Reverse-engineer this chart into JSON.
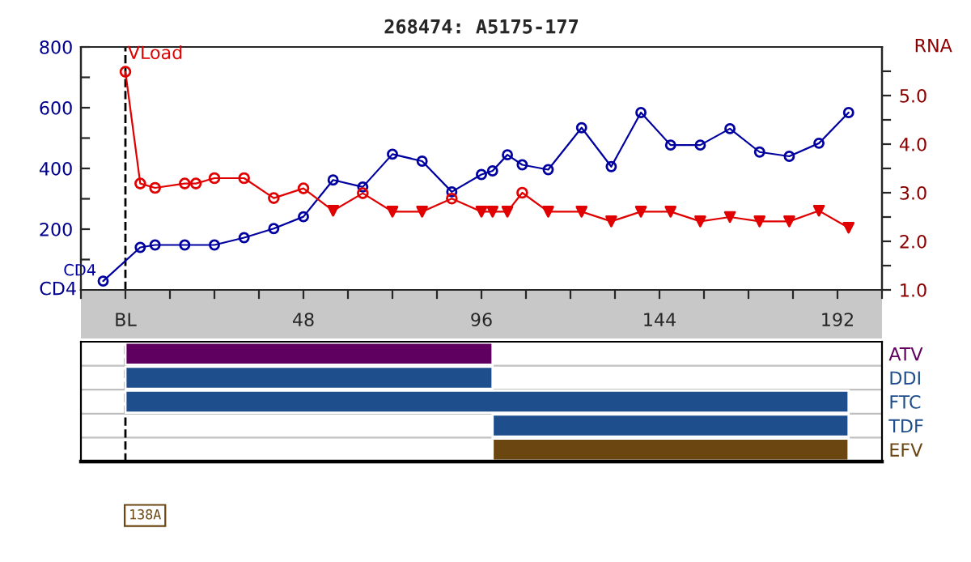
{
  "chart_data": [
    {
      "type": "line",
      "title": "268474: A5175-177",
      "ylabel": "CD4",
      "y2label": "RNA",
      "xlim": [
        -12,
        204
      ],
      "xticks": [
        {
          "value": -12,
          "label": null
        },
        {
          "value": 0,
          "label": "BL"
        },
        {
          "value": 12,
          "label": null
        },
        {
          "value": 24,
          "label": null
        },
        {
          "value": 36,
          "label": null
        },
        48,
        {
          "value": 60,
          "label": null
        },
        {
          "value": 72,
          "label": null
        },
        {
          "value": 84,
          "label": null
        },
        96,
        {
          "value": 108,
          "label": null
        },
        {
          "value": 120,
          "label": null
        },
        {
          "value": 132,
          "label": null
        },
        144,
        {
          "value": 156,
          "label": null
        },
        {
          "value": 168,
          "label": null
        },
        {
          "value": 180,
          "label": null
        },
        192,
        {
          "value": 204,
          "label": null
        }
      ],
      "ylim": [
        0,
        800
      ],
      "yticks": [
        {
          "value": 100,
          "label": null
        },
        200,
        {
          "value": 300,
          "label": null
        },
        400,
        {
          "value": 500,
          "label": null
        },
        600,
        {
          "value": 700,
          "label": null
        },
        800
      ],
      "y2lim": [
        1.0,
        6.0
      ],
      "y2ticks": [
        {
          "value": 1,
          "label": "1.0"
        },
        {
          "value": 1.5,
          "label": null
        },
        {
          "value": 2,
          "label": "2.0"
        },
        {
          "value": 2.5,
          "label": null
        },
        {
          "value": 3,
          "label": "3.0"
        },
        {
          "value": 3.5,
          "label": null
        },
        {
          "value": 4,
          "label": "4.0"
        },
        {
          "value": 4.5,
          "label": null
        },
        {
          "value": 5,
          "label": "5.0"
        },
        {
          "value": 5.5,
          "label": null
        }
      ],
      "grid": false,
      "ref_lines": [
        {
          "axis": "x",
          "value": 0,
          "color": "#000000",
          "line_style": "dashed"
        }
      ],
      "series": [
        {
          "name": "CD4",
          "type": "line",
          "color": "#0000a0",
          "marker": "circle",
          "x": [
            -6,
            4,
            8,
            16,
            24,
            32,
            40,
            48,
            56,
            64,
            72,
            80,
            88,
            96,
            99,
            103,
            107,
            114,
            123,
            131,
            139,
            147,
            155,
            163,
            171,
            179,
            187,
            195
          ],
          "values": [
            29,
            140,
            148,
            148,
            148,
            172,
            202,
            241,
            362,
            339,
            447,
            424,
            323,
            380,
            392,
            445,
            412,
            396,
            534,
            406,
            584,
            477,
            477,
            531,
            454,
            440,
            483,
            584
          ]
        },
        {
          "name": "VLoad",
          "type": "line",
          "axis": "y2",
          "color": "#e00000",
          "marker": "none",
          "x": [
            0,
            4,
            8,
            16,
            19,
            24,
            32,
            40,
            48,
            56,
            64,
            72,
            80,
            88,
            96,
            99,
            103,
            107,
            114,
            123,
            131,
            139,
            147,
            155,
            163,
            171,
            179,
            187,
            195
          ],
          "values": [
            5.49,
            3.19,
            3.1,
            3.19,
            3.19,
            3.3,
            3.3,
            2.89,
            3.09,
            2.63,
            2.99,
            2.61,
            2.61,
            2.88,
            2.61,
            2.61,
            2.61,
            3.0,
            2.61,
            2.61,
            2.41,
            2.61,
            2.61,
            2.41,
            2.5,
            2.41,
            2.41,
            2.63,
            2.28
          ]
        },
        {
          "type": "scatter",
          "axis": "y2",
          "color": "#e00000",
          "marker": "circle",
          "x": [
            0,
            4,
            8,
            16,
            19,
            24,
            32,
            40,
            48,
            64,
            88,
            107
          ],
          "values": [
            5.49,
            3.19,
            3.1,
            3.19,
            3.19,
            3.3,
            3.3,
            2.89,
            3.09,
            2.99,
            2.88,
            3.0
          ]
        },
        {
          "type": "scatter",
          "axis": "y2",
          "color": "#e00000",
          "marker": "triangle",
          "x": [
            56,
            72,
            80,
            96,
            99,
            103,
            114,
            123,
            131,
            139,
            147,
            155,
            163,
            171,
            179,
            187,
            195
          ],
          "values": [
            2.63,
            2.61,
            2.61,
            2.61,
            2.61,
            2.61,
            2.61,
            2.61,
            2.41,
            2.61,
            2.61,
            2.41,
            2.5,
            2.41,
            2.41,
            2.63,
            2.28
          ]
        }
      ]
    },
    {
      "type": "bar",
      "orientation": "horizontal",
      "categories": [
        "ATV",
        "DDI",
        "FTC",
        "TDF",
        "EFV"
      ],
      "values": [
        99,
        99,
        195,
        96,
        96
      ],
      "base": [
        0,
        0,
        0,
        99,
        99
      ],
      "colors": [
        "#5f0060",
        "#1f4e8c",
        "#1f4e8c",
        "#1f4e8c",
        "#6b4610"
      ],
      "xlim": [
        -12,
        204
      ],
      "tick_labels": "y",
      "ref_lines": [
        {
          "axis": "x",
          "value": 0,
          "color": "#000000",
          "line_style": "dashed"
        }
      ],
      "annotations": [
        "138A"
      ]
    }
  ]
}
